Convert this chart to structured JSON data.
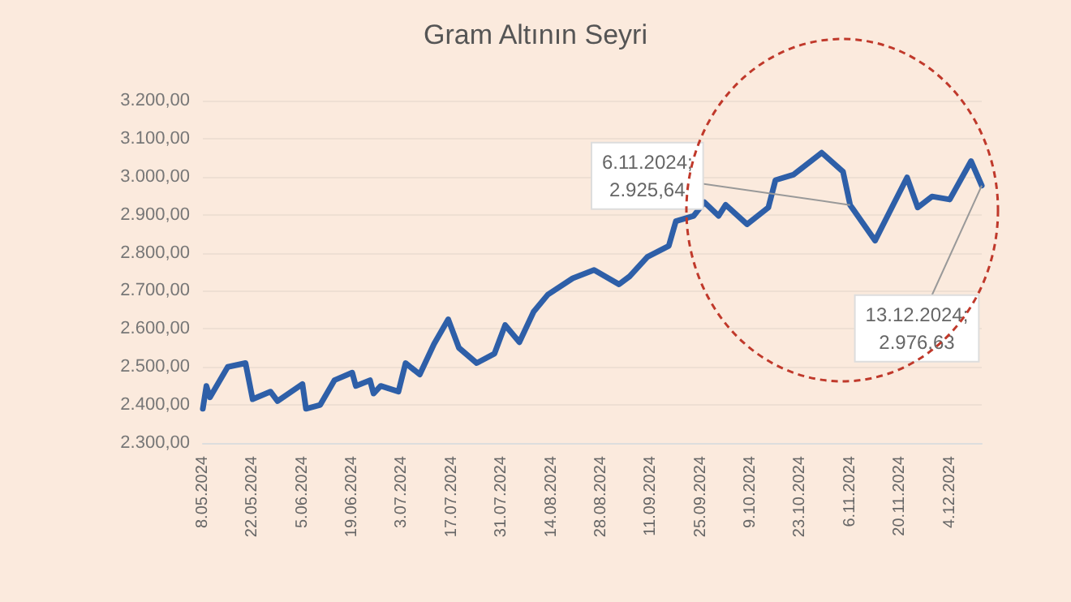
{
  "chart_data": {
    "type": "line",
    "title": "Gram Altının Seyri",
    "x": [
      "2024-05-08",
      "2024-05-09",
      "2024-05-10",
      "2024-05-15",
      "2024-05-20",
      "2024-05-22",
      "2024-05-27",
      "2024-05-29",
      "2024-06-05",
      "2024-06-06",
      "2024-06-10",
      "2024-06-14",
      "2024-06-19",
      "2024-06-20",
      "2024-06-24",
      "2024-06-25",
      "2024-06-27",
      "2024-07-02",
      "2024-07-04",
      "2024-07-08",
      "2024-07-12",
      "2024-07-16",
      "2024-07-19",
      "2024-07-24",
      "2024-07-29",
      "2024-08-01",
      "2024-08-05",
      "2024-08-09",
      "2024-08-13",
      "2024-08-20",
      "2024-08-26",
      "2024-09-02",
      "2024-09-05",
      "2024-09-10",
      "2024-09-16",
      "2024-09-18",
      "2024-09-23",
      "2024-09-26",
      "2024-09-30",
      "2024-10-02",
      "2024-10-08",
      "2024-10-14",
      "2024-10-16",
      "2024-10-21",
      "2024-10-29",
      "2024-11-04",
      "2024-11-06",
      "2024-11-13",
      "2024-11-22",
      "2024-11-25",
      "2024-11-29",
      "2024-12-04",
      "2024-12-10",
      "2024-12-13"
    ],
    "series": [
      {
        "color": "#2e5fa8",
        "values": [
          2390,
          2450,
          2420,
          2500,
          2510,
          2415,
          2435,
          2410,
          2455,
          2390,
          2400,
          2465,
          2485,
          2450,
          2465,
          2430,
          2450,
          2435,
          2510,
          2480,
          2560,
          2625,
          2550,
          2510,
          2535,
          2610,
          2565,
          2645,
          2690,
          2733,
          2755,
          2717,
          2738,
          2789,
          2818,
          2883,
          2897,
          2933,
          2897,
          2926,
          2875,
          2919,
          2991,
          3005,
          3063,
          3013,
          2925.64,
          2832,
          2998,
          2919,
          2948,
          2940,
          3041,
          2976.63
        ]
      }
    ],
    "xlim": [
      "2024-05-08",
      "2024-12-13"
    ],
    "xticks": [
      {
        "value": "2024-05-08",
        "label": "8.05.2024"
      },
      {
        "value": "2024-05-22",
        "label": "22.05.2024"
      },
      {
        "value": "2024-06-05",
        "label": "5.06.2024"
      },
      {
        "value": "2024-06-19",
        "label": "19.06.2024"
      },
      {
        "value": "2024-07-03",
        "label": "3.07.2024"
      },
      {
        "value": "2024-07-17",
        "label": "17.07.2024"
      },
      {
        "value": "2024-07-31",
        "label": "31.07.2024"
      },
      {
        "value": "2024-08-14",
        "label": "14.08.2024"
      },
      {
        "value": "2024-08-28",
        "label": "28.08.2024"
      },
      {
        "value": "2024-09-11",
        "label": "11.09.2024"
      },
      {
        "value": "2024-09-25",
        "label": "25.09.2024"
      },
      {
        "value": "2024-10-09",
        "label": "9.10.2024"
      },
      {
        "value": "2024-10-23",
        "label": "23.10.2024"
      },
      {
        "value": "2024-11-06",
        "label": "6.11.2024"
      },
      {
        "value": "2024-11-20",
        "label": "20.11.2024"
      },
      {
        "value": "2024-12-04",
        "label": "4.12.2024"
      }
    ],
    "ylim": [
      2300,
      3200
    ],
    "yticks": [
      {
        "value": 2300,
        "label": "2.300,00"
      },
      {
        "value": 2400,
        "label": "2.400,00"
      },
      {
        "value": 2500,
        "label": "2.500,00"
      },
      {
        "value": 2600,
        "label": "2.600,00"
      },
      {
        "value": 2700,
        "label": "2.700,00"
      },
      {
        "value": 2800,
        "label": "2.800,00"
      },
      {
        "value": 2900,
        "label": "2.900,00"
      },
      {
        "value": 3000,
        "label": "3.000,00"
      },
      {
        "value": 3100,
        "label": "3.100,00"
      },
      {
        "value": 3200,
        "label": "3.200,00"
      }
    ],
    "grid": "y",
    "marker": "none",
    "line_style": "solid",
    "annotations": [
      {
        "text": "6.11.2024;\n2.925,64",
        "x": "2024-11-06",
        "y": 2925.64
      },
      {
        "text": "13.12.2024;\n2.976,63",
        "x": "2024-12-13",
        "y": 2976.63
      }
    ]
  }
}
